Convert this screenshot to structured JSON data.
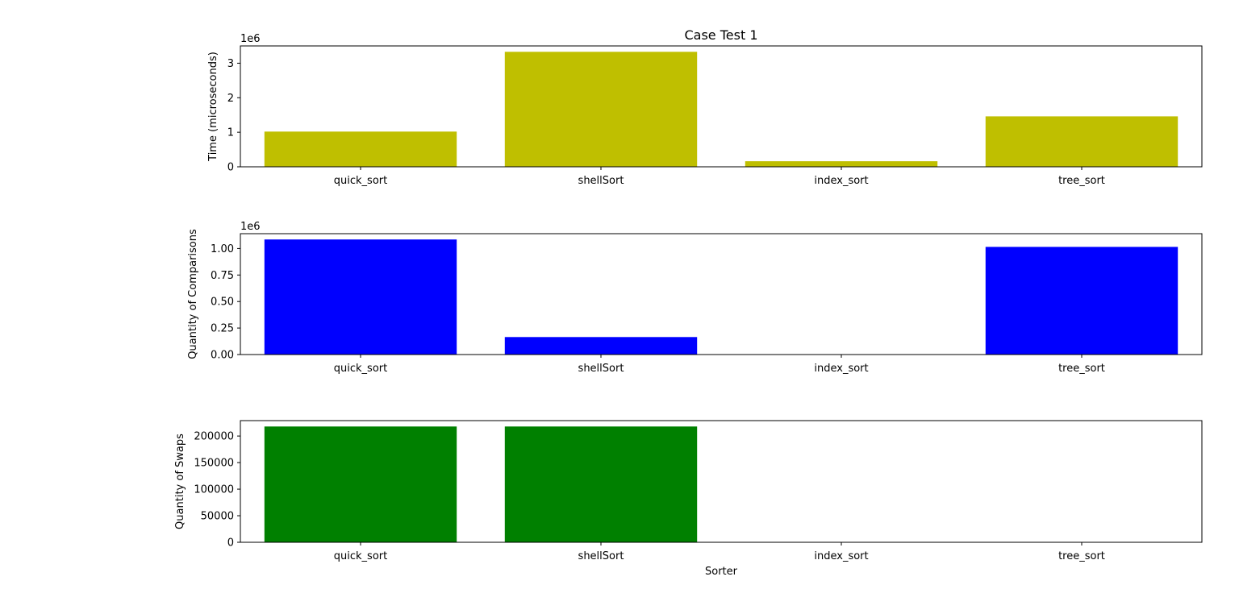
{
  "chart_data": [
    {
      "type": "bar",
      "title": "Case Test 1",
      "xlabel": "",
      "ylabel": "Time (microseconds)",
      "offset_label": "1e6",
      "categories": [
        "quick_sort",
        "shellSort",
        "index_sort",
        "tree_sort"
      ],
      "values": [
        1020000,
        3330000,
        160000,
        1460000
      ],
      "color": "#bfbf00",
      "ylim": [
        0,
        3500000
      ],
      "yticks": [
        0,
        1000000,
        2000000,
        3000000
      ],
      "ytick_labels": [
        "0",
        "1",
        "2",
        "3"
      ],
      "grid": false,
      "legend": "none"
    },
    {
      "type": "bar",
      "title": "",
      "xlabel": "",
      "ylabel": "Quantity of Comparisons",
      "offset_label": "1e6",
      "categories": [
        "quick_sort",
        "shellSort",
        "index_sort",
        "tree_sort"
      ],
      "values": [
        1085000,
        165000,
        0,
        1015000
      ],
      "color": "#0000ff",
      "ylim": [
        0,
        1140000
      ],
      "yticks": [
        0,
        250000,
        500000,
        750000,
        1000000
      ],
      "ytick_labels": [
        "0.00",
        "0.25",
        "0.50",
        "0.75",
        "1.00"
      ],
      "grid": false,
      "legend": "none"
    },
    {
      "type": "bar",
      "title": "",
      "xlabel": "Sorter",
      "ylabel": "Quantity of Swaps",
      "offset_label": "",
      "categories": [
        "quick_sort",
        "shellSort",
        "index_sort",
        "tree_sort"
      ],
      "values": [
        218000,
        218000,
        0,
        0
      ],
      "color": "#008000",
      "ylim": [
        0,
        229000
      ],
      "yticks": [
        0,
        50000,
        100000,
        150000,
        200000
      ],
      "ytick_labels": [
        "0",
        "50000",
        "100000",
        "150000",
        "200000"
      ],
      "grid": false,
      "legend": "none"
    }
  ]
}
